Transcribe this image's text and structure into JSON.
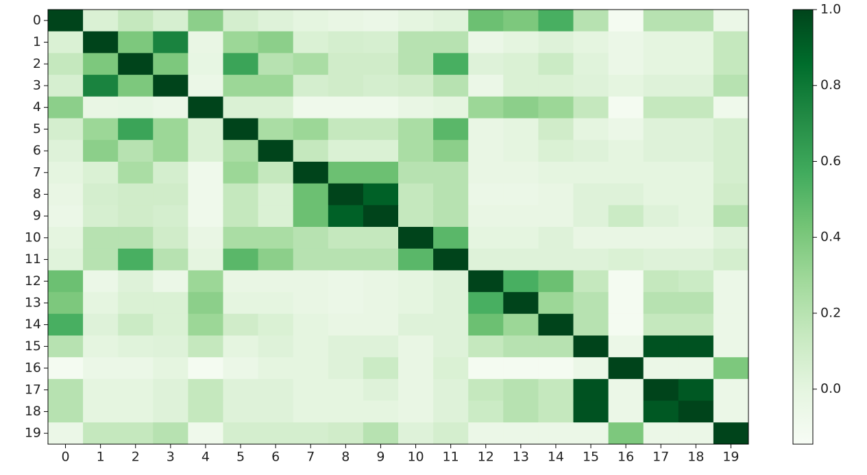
{
  "chart_data": {
    "type": "heatmap",
    "colormap": "Greens",
    "x_labels": [
      0,
      1,
      2,
      3,
      4,
      5,
      6,
      7,
      8,
      9,
      10,
      11,
      12,
      13,
      14,
      15,
      16,
      17,
      18,
      19
    ],
    "y_labels": [
      0,
      1,
      2,
      3,
      4,
      5,
      6,
      7,
      8,
      9,
      10,
      11,
      12,
      13,
      14,
      15,
      16,
      17,
      18,
      19
    ],
    "values": [
      [
        1,
        0.05,
        0.15,
        0.07,
        0.35,
        0.08,
        0.03,
        0.0,
        -0.03,
        -0.05,
        0.0,
        0.02,
        0.45,
        0.4,
        0.55,
        0.2,
        -0.12,
        0.2,
        0.2,
        -0.05
      ],
      [
        0.05,
        1,
        0.4,
        0.75,
        -0.03,
        0.3,
        0.35,
        0.05,
        0.08,
        0.07,
        0.2,
        0.2,
        -0.05,
        0.0,
        0.03,
        0.0,
        -0.05,
        0.0,
        0.0,
        0.15
      ],
      [
        0.15,
        0.4,
        1,
        0.4,
        -0.02,
        0.6,
        0.2,
        0.25,
        0.1,
        0.1,
        0.2,
        0.55,
        0.03,
        0.05,
        0.12,
        0.02,
        -0.05,
        0.0,
        0.0,
        0.15
      ],
      [
        0.07,
        0.75,
        0.4,
        1,
        -0.05,
        0.3,
        0.3,
        0.08,
        0.1,
        0.08,
        0.1,
        0.2,
        -0.05,
        0.05,
        0.05,
        0.03,
        0.0,
        0.03,
        0.03,
        0.2
      ],
      [
        0.35,
        -0.03,
        -0.02,
        -0.05,
        1,
        0.05,
        0.05,
        -0.08,
        -0.08,
        -0.08,
        -0.03,
        0.0,
        0.3,
        0.35,
        0.3,
        0.15,
        -0.12,
        0.15,
        0.15,
        -0.08
      ],
      [
        0.08,
        0.3,
        0.6,
        0.3,
        0.05,
        1,
        0.25,
        0.3,
        0.15,
        0.15,
        0.25,
        0.5,
        -0.03,
        0.0,
        0.1,
        0.0,
        -0.05,
        0.03,
        0.03,
        0.08
      ],
      [
        0.03,
        0.35,
        0.2,
        0.3,
        0.05,
        0.25,
        1,
        0.15,
        0.05,
        0.05,
        0.25,
        0.35,
        -0.03,
        0.0,
        0.05,
        0.03,
        0.0,
        0.03,
        0.03,
        0.08
      ],
      [
        0.0,
        0.05,
        0.25,
        0.08,
        -0.08,
        0.3,
        0.15,
        1,
        0.45,
        0.45,
        0.2,
        0.2,
        -0.03,
        -0.03,
        0.0,
        0.0,
        0.0,
        0.0,
        0.0,
        0.08
      ],
      [
        -0.03,
        0.08,
        0.1,
        0.1,
        -0.08,
        0.15,
        0.05,
        0.45,
        1,
        0.9,
        0.15,
        0.2,
        -0.05,
        -0.05,
        -0.03,
        0.03,
        0.03,
        0.0,
        0.0,
        0.1
      ],
      [
        -0.05,
        0.07,
        0.1,
        0.08,
        -0.08,
        0.15,
        0.05,
        0.45,
        0.9,
        1,
        0.15,
        0.2,
        -0.03,
        -0.03,
        -0.03,
        0.03,
        0.12,
        0.03,
        0.0,
        0.2
      ],
      [
        0.0,
        0.2,
        0.2,
        0.1,
        -0.03,
        0.25,
        0.25,
        0.2,
        0.15,
        0.15,
        1,
        0.5,
        0.0,
        0.0,
        0.03,
        -0.03,
        -0.03,
        -0.03,
        -0.03,
        0.03
      ],
      [
        0.02,
        0.2,
        0.55,
        0.2,
        0.0,
        0.5,
        0.35,
        0.2,
        0.2,
        0.2,
        0.5,
        1,
        0.03,
        0.03,
        0.03,
        0.03,
        0.05,
        0.03,
        0.03,
        0.08
      ],
      [
        0.45,
        -0.05,
        0.03,
        -0.05,
        0.3,
        -0.03,
        -0.03,
        -0.03,
        -0.05,
        -0.03,
        0.0,
        0.03,
        1,
        0.55,
        0.45,
        0.15,
        -0.12,
        0.15,
        0.12,
        -0.05
      ],
      [
        0.4,
        0.0,
        0.05,
        0.05,
        0.35,
        0.0,
        0.0,
        -0.03,
        -0.05,
        -0.03,
        0.0,
        0.03,
        0.55,
        1,
        0.3,
        0.2,
        -0.12,
        0.2,
        0.2,
        -0.05
      ],
      [
        0.55,
        0.03,
        0.12,
        0.05,
        0.3,
        0.1,
        0.05,
        0.0,
        -0.03,
        -0.03,
        0.03,
        0.03,
        0.45,
        0.3,
        1,
        0.2,
        -0.12,
        0.15,
        0.15,
        -0.05
      ],
      [
        0.2,
        0.0,
        0.02,
        0.03,
        0.15,
        0.0,
        0.03,
        0.0,
        0.03,
        0.03,
        -0.03,
        0.03,
        0.15,
        0.2,
        0.2,
        1,
        -0.05,
        0.95,
        0.95,
        -0.05
      ],
      [
        -0.12,
        -0.05,
        -0.05,
        0.0,
        -0.12,
        -0.05,
        0.0,
        0.0,
        0.03,
        0.12,
        -0.03,
        0.05,
        -0.12,
        -0.12,
        -0.12,
        -0.05,
        1,
        -0.05,
        -0.05,
        0.4
      ],
      [
        0.2,
        0.0,
        0.0,
        0.03,
        0.15,
        0.03,
        0.03,
        0.0,
        0.0,
        0.03,
        -0.03,
        0.03,
        0.15,
        0.2,
        0.15,
        0.95,
        -0.05,
        1,
        0.93,
        -0.05
      ],
      [
        0.2,
        0.0,
        0.0,
        0.03,
        0.15,
        0.03,
        0.03,
        0.0,
        0.0,
        0.0,
        -0.03,
        0.03,
        0.12,
        0.2,
        0.15,
        0.95,
        -0.05,
        0.93,
        1,
        -0.05
      ],
      [
        -0.05,
        0.15,
        0.15,
        0.2,
        -0.08,
        0.08,
        0.08,
        0.08,
        0.1,
        0.2,
        0.03,
        0.08,
        -0.05,
        -0.05,
        -0.05,
        -0.05,
        0.4,
        -0.05,
        -0.05,
        1
      ]
    ],
    "zlim": [
      -0.145,
      1.0
    ],
    "zticks": [
      {
        "value": 0,
        "label": "0.0"
      },
      0.2,
      0.4,
      0.6,
      0.8,
      {
        "value": 1,
        "label": "1.0"
      }
    ]
  }
}
